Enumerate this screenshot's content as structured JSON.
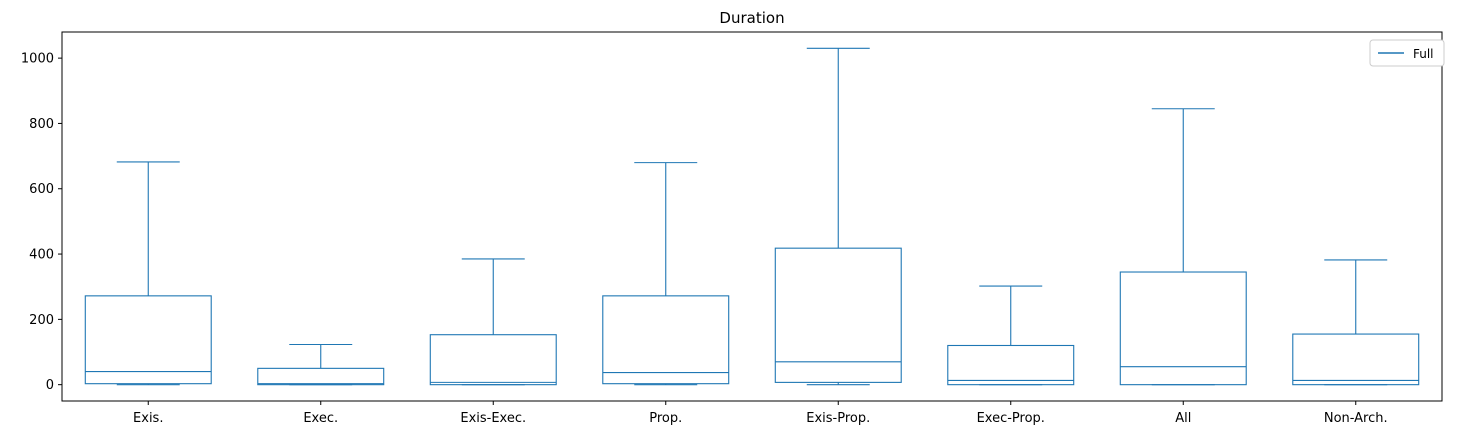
{
  "chart_data": {
    "type": "box",
    "title": "Duration",
    "xlabel": "",
    "ylabel": "",
    "ylim": [
      -50,
      1080
    ],
    "yticks": [
      0,
      200,
      400,
      600,
      800,
      1000
    ],
    "grid": false,
    "legend": {
      "placement": "top-right",
      "entries": [
        "Full"
      ]
    },
    "color": "#1f77b4",
    "categories": [
      "Exis.",
      "Exec.",
      "Exis-Exec.",
      "Prop.",
      "Exis-Prop.",
      "Exec-Prop.",
      "All",
      "Non-Arch."
    ],
    "series": [
      {
        "name": "Full",
        "boxes": [
          {
            "category": "Exis.",
            "whislo": 0,
            "q1": 3,
            "median": 40,
            "q3": 272,
            "whishi": 682
          },
          {
            "category": "Exec.",
            "whislo": 0,
            "q1": 0,
            "median": 3,
            "q3": 50,
            "whishi": 123
          },
          {
            "category": "Exis-Exec.",
            "whislo": 0,
            "q1": 0,
            "median": 7,
            "q3": 153,
            "whishi": 385
          },
          {
            "category": "Prop.",
            "whislo": 0,
            "q1": 3,
            "median": 37,
            "q3": 272,
            "whishi": 680
          },
          {
            "category": "Exis-Prop.",
            "whislo": 0,
            "q1": 7,
            "median": 70,
            "q3": 418,
            "whishi": 1030
          },
          {
            "category": "Exec-Prop.",
            "whislo": 0,
            "q1": 0,
            "median": 13,
            "q3": 120,
            "whishi": 302
          },
          {
            "category": "All",
            "whislo": 0,
            "q1": 0,
            "median": 55,
            "q3": 345,
            "whishi": 845
          },
          {
            "category": "Non-Arch.",
            "whislo": 0,
            "q1": 0,
            "median": 13,
            "q3": 155,
            "whishi": 382
          }
        ]
      }
    ]
  }
}
